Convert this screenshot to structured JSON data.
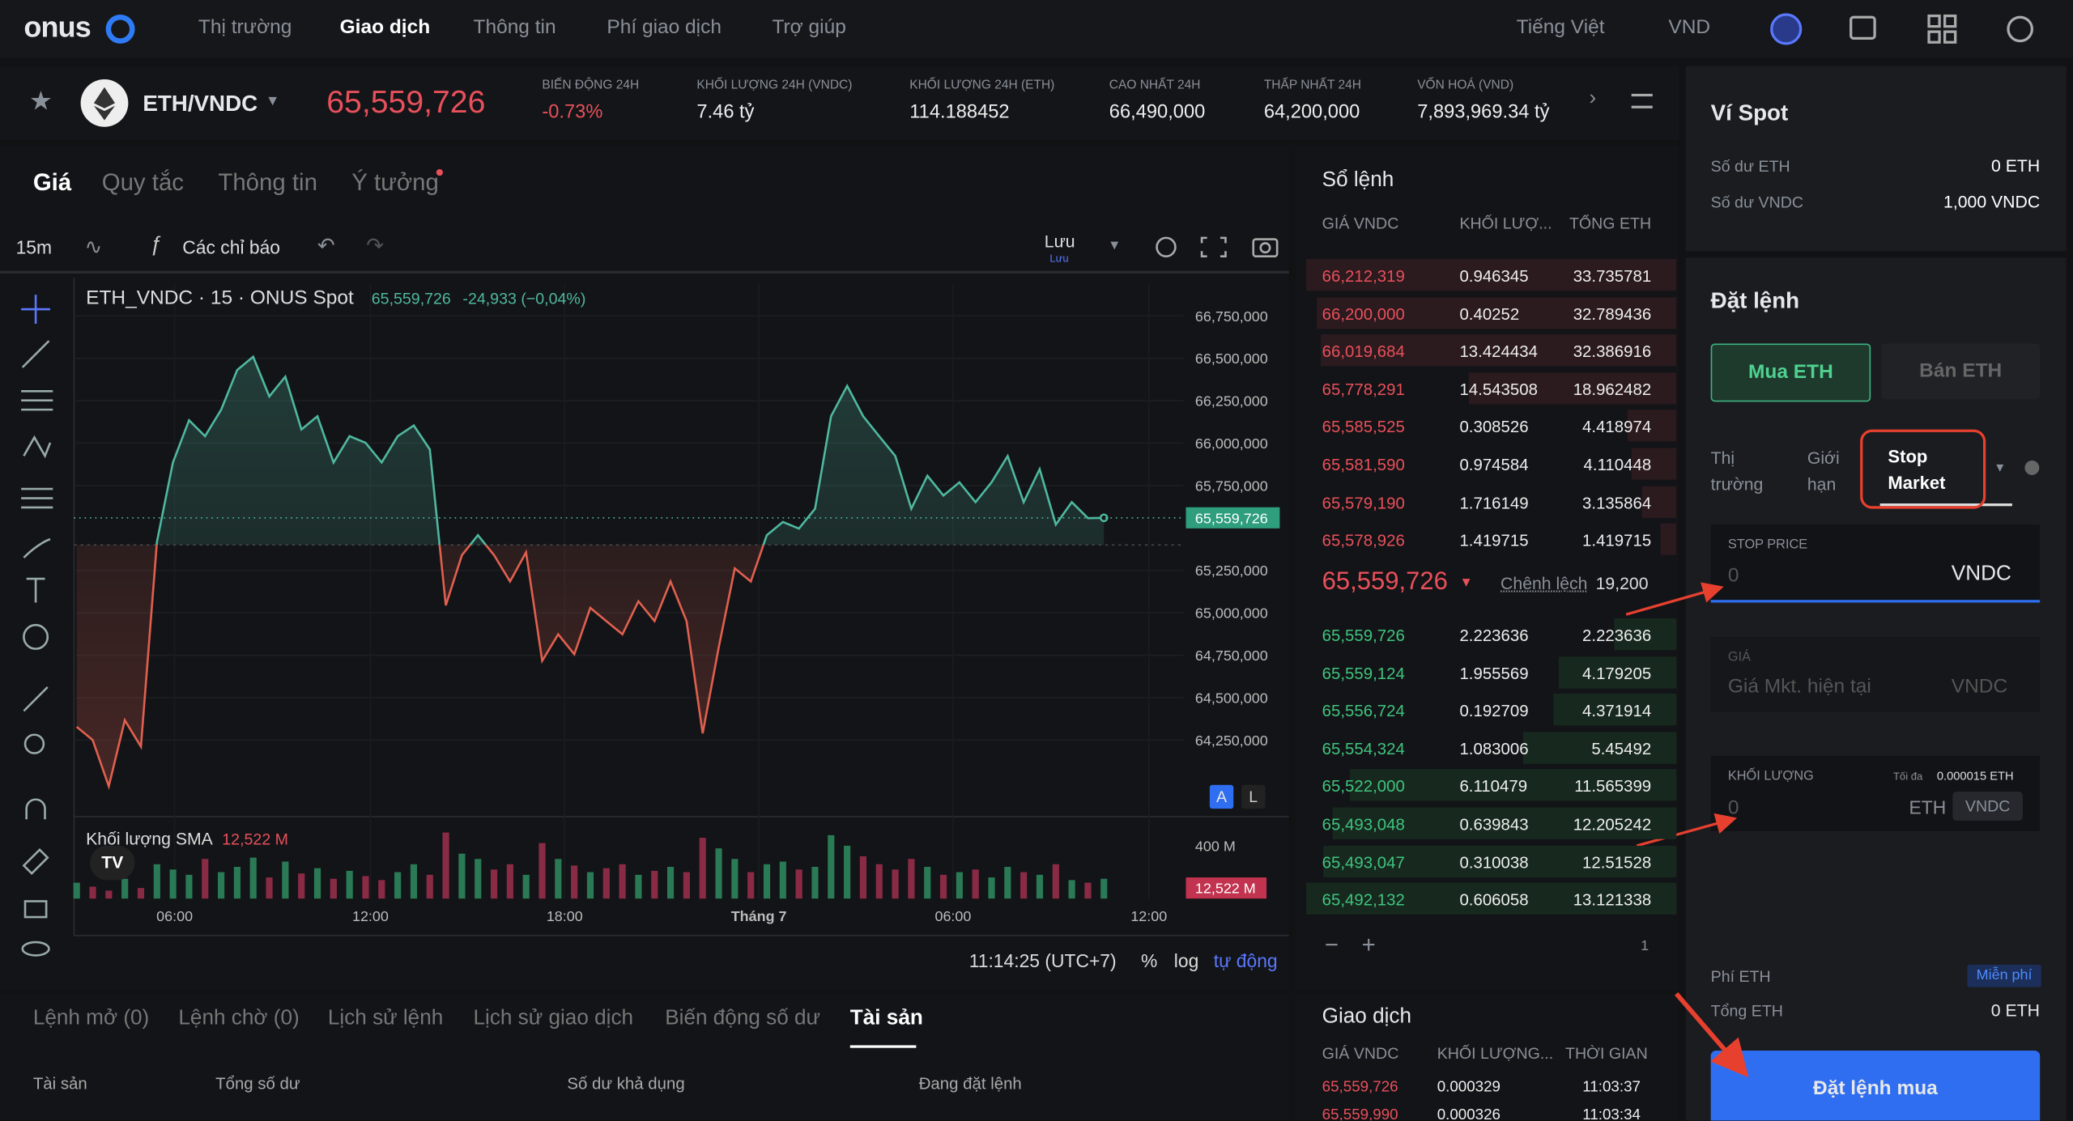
{
  "nav": {
    "logo": "onus",
    "items": [
      "Thị trường",
      "Giao dịch",
      "Thông tin",
      "Phí giao dịch",
      "Trợ giúp"
    ],
    "language": "Tiếng Việt",
    "currency": "VND"
  },
  "ticker": {
    "pair": "ETH/VNDC",
    "price": "65,559,726",
    "stats": [
      {
        "label": "BIẾN ĐỘNG 24H",
        "value": "-0.73%"
      },
      {
        "label": "KHỐI LƯỢNG 24H (VNDC)",
        "value": "7.46 tỷ"
      },
      {
        "label": "KHỐI LƯỢNG 24H (ETH)",
        "value": "114.188452"
      },
      {
        "label": "CAO NHẤT 24H",
        "value": "66,490,000"
      },
      {
        "label": "THẤP NHẤT 24H",
        "value": "64,200,000"
      },
      {
        "label": "VỐN HOÁ (VND)",
        "value": "7,893,969.34 tỷ"
      }
    ]
  },
  "chart_tabs": [
    "Giá",
    "Quy tắc",
    "Thông tin",
    "Ý tưởng"
  ],
  "toolbar": {
    "interval": "15m",
    "indicators": "Các chỉ báo",
    "save": "Lưu",
    "save_sub": "Lưu"
  },
  "chart_data": {
    "type": "line",
    "title": "ETH_VNDC · 15 · ONUS Spot",
    "legend_price": "65,559,726",
    "legend_change": "-24,933 (−0,04%)",
    "values": [
      64328000,
      64250000,
      63978000,
      64367000,
      64211000,
      65418000,
      65886000,
      66135000,
      66041000,
      66197000,
      66431000,
      66509000,
      66275000,
      66392000,
      66080000,
      66158000,
      65886000,
      66041000,
      66002000,
      65886000,
      66041000,
      66104000,
      65963000,
      65044000,
      65340000,
      65457000,
      65340000,
      65185000,
      65356000,
      64717000,
      64873000,
      64756000,
      65029000,
      64951000,
      64873000,
      65068000,
      64951000,
      65185000,
      64951000,
      64289000,
      64795000,
      65262000,
      65185000,
      65457000,
      65535000,
      65496000,
      65613000,
      66158000,
      66337000,
      66158000,
      66041000,
      65924000,
      65613000,
      65808000,
      65691000,
      65769000,
      65652000,
      65769000,
      65924000,
      65652000,
      65847000,
      65520000,
      65652000,
      65558000,
      65559726
    ],
    "baseline": 65400000,
    "up_color": "#4fb8a0",
    "down_color": "#e0604f",
    "ylim": [
      63822000,
      66937000
    ],
    "yticks": [
      {
        "value": 66750000,
        "label": "66,750,000"
      },
      {
        "value": 66500000,
        "label": "66,500,000"
      },
      {
        "value": 66250000,
        "label": "66,250,000"
      },
      {
        "value": 66000000,
        "label": "66,000,000"
      },
      {
        "value": 65750000,
        "label": "65,750,000"
      },
      {
        "value": 65250000,
        "label": "65,250,000"
      },
      {
        "value": 65000000,
        "label": "65,000,000"
      },
      {
        "value": 64750000,
        "label": "64,750,000"
      },
      {
        "value": 64500000,
        "label": "64,500,000"
      },
      {
        "value": 64250000,
        "label": "64,250,000"
      }
    ],
    "last_label": "65,559,726",
    "xticks": [
      {
        "value": 6.1,
        "label": "06:00"
      },
      {
        "value": 18.3,
        "label": "12:00"
      },
      {
        "value": 30.4,
        "label": "18:00"
      },
      {
        "value": 42.5,
        "label": "Tháng 7"
      },
      {
        "value": 54.6,
        "label": "06:00"
      },
      {
        "value": 66.8,
        "label": "12:00"
      }
    ],
    "volume_title": "Khối lượng SMA",
    "volume_sma": "12,522 M",
    "volume_last_label": "12,522 M",
    "volume": [
      120,
      90,
      60,
      150,
      80,
      260,
      220,
      180,
      300,
      200,
      240,
      310,
      160,
      280,
      190,
      230,
      150,
      210,
      170,
      140,
      200,
      260,
      180,
      500,
      340,
      300,
      220,
      260,
      180,
      420,
      300,
      250,
      200,
      230,
      260,
      180,
      210,
      240,
      200,
      460,
      380,
      300,
      200,
      260,
      280,
      220,
      240,
      480,
      400,
      320,
      260,
      220,
      300,
      240,
      180,
      200,
      220,
      160,
      240,
      200,
      180,
      260,
      140,
      120,
      150
    ],
    "vylim": [
      0,
      520
    ],
    "vyticks": [
      {
        "value": 400,
        "label": "400 M"
      }
    ],
    "status_time": "11:14:25 (UTC+7)",
    "status_percent": "%",
    "status_log": "log",
    "status_auto": "tự động",
    "btn_a": "A",
    "btn_l": "L"
  },
  "orderbook": {
    "title": "Sổ lệnh",
    "columns": [
      "GIÁ VNDC",
      "KHỐI LƯỢ...",
      "TỔNG ETH"
    ],
    "asks": [
      [
        "66,212,319",
        0.946345,
        33.735781
      ],
      [
        "66,200,000",
        0.40252,
        32.789436
      ],
      [
        "66,019,684",
        13.424434,
        32.386916
      ],
      [
        "65,778,291",
        14.543508,
        18.962482
      ],
      [
        "65,585,525",
        0.308526,
        4.418974
      ],
      [
        "65,581,590",
        0.974584,
        4.110448
      ],
      [
        "65,579,190",
        1.716149,
        3.135864
      ],
      [
        "65,578,926",
        1.419715,
        1.419715
      ]
    ],
    "mid_price": "65,559,726",
    "spread_label": "Chênh lệch",
    "spread": "19,200",
    "bids": [
      [
        "65,559,726",
        2.223636,
        2.223636
      ],
      [
        "65,559,124",
        1.955569,
        4.179205
      ],
      [
        "65,556,724",
        0.192709,
        4.371914
      ],
      [
        "65,554,324",
        1.083006,
        5.45492
      ],
      [
        "65,522,000",
        6.110479,
        11.565399
      ],
      [
        "65,493,048",
        0.639843,
        12.205242
      ],
      [
        "65,493,047",
        0.310038,
        12.51528
      ],
      [
        "65,492,132",
        0.606058,
        13.121338
      ]
    ],
    "step": "1"
  },
  "trades": {
    "title": "Giao dịch",
    "columns": [
      "GIÁ VNDC",
      "KHỐI LƯỢNG...",
      "THỜI GIAN"
    ],
    "rows": [
      [
        "65,559,726",
        "0.000329",
        "11:03:37"
      ],
      [
        "65,559,990",
        "0.000326",
        "11:03:34"
      ]
    ]
  },
  "wallet": {
    "title": "Ví Spot",
    "rows": [
      [
        "Số dư ETH",
        "0 ETH"
      ],
      [
        "Số dư VNDC",
        "1,000 VNDC"
      ]
    ]
  },
  "order": {
    "title": "Đặt lệnh",
    "buy": "Mua ETH",
    "sell": "Bán ETH",
    "types": [
      "Thị trường",
      "Giới hạn",
      "Stop Market"
    ],
    "stop_label": "STOP PRICE",
    "stop_placeholder": "0",
    "stop_unit": "VNDC",
    "price_label": "GIÁ",
    "price_placeholder": "Giá Mkt. hiện tại",
    "price_unit": "VNDC",
    "qty_label": "KHỐI LƯỢNG",
    "qty_max_label": "Tối đa",
    "qty_max": "0.000015 ETH",
    "qty_placeholder": "0",
    "qty_unit": "ETH",
    "qty_unit_alt": "VNDC",
    "fee_label": "Phí ETH",
    "fee": "Miễn phí",
    "total_label": "Tổng ETH",
    "total": "0 ETH",
    "submit": "Đặt lệnh mua"
  },
  "bottom": {
    "tabs": [
      "Lệnh mở (0)",
      "Lệnh chờ (0)",
      "Lịch sử lệnh",
      "Lịch sử giao dịch",
      "Biến động số dư",
      "Tài sản"
    ],
    "columns": [
      "Tài sản",
      "Tổng số dư",
      "Số dư khả dụng",
      "Đang đặt lệnh"
    ]
  }
}
